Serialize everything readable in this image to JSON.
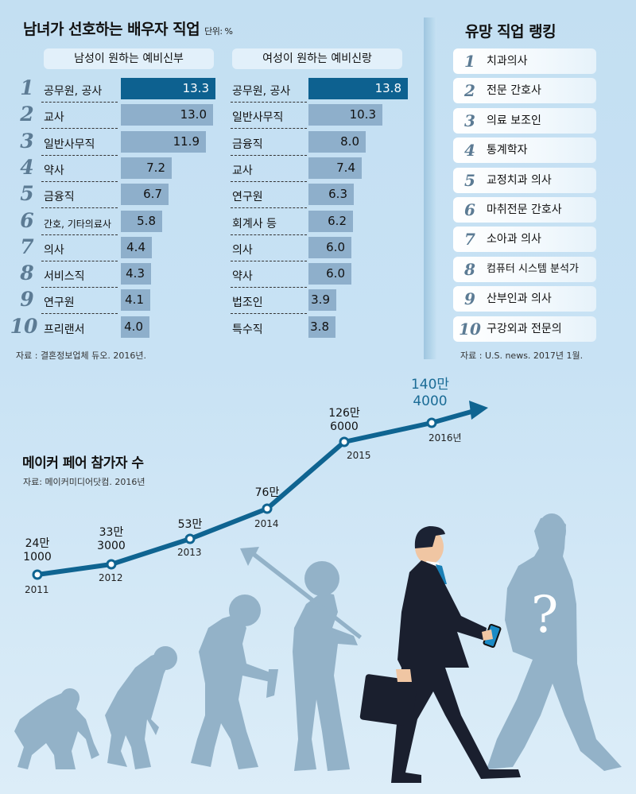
{
  "spouse_chart": {
    "title": "남녀가 선호하는 배우자 직업",
    "unit": "단위: %",
    "male_header": "남성이 원하는 예비신부",
    "female_header": "여성이 원하는 예비신랑",
    "source": "자료 : 결혼정보업체 듀오. 2016년.",
    "highlight_color": "#0d6190",
    "bar_color": "#8eafcb",
    "ranks": [
      "1",
      "2",
      "3",
      "4",
      "5",
      "6",
      "7",
      "8",
      "9",
      "10"
    ],
    "male": [
      {
        "label": "공무원, 공사",
        "value": "13.3"
      },
      {
        "label": "교사",
        "value": "13.0"
      },
      {
        "label": "일반사무직",
        "value": "11.9"
      },
      {
        "label": "약사",
        "value": "7.2"
      },
      {
        "label": "금융직",
        "value": "6.7"
      },
      {
        "label": "간호, 기타의료사",
        "value": "5.8"
      },
      {
        "label": "의사",
        "value": "4.4"
      },
      {
        "label": "서비스직",
        "value": "4.3"
      },
      {
        "label": "연구원",
        "value": "4.1"
      },
      {
        "label": "프리랜서",
        "value": "4.0"
      }
    ],
    "female": [
      {
        "label": "공무원, 공사",
        "value": "13.8"
      },
      {
        "label": "일반사무직",
        "value": "10.3"
      },
      {
        "label": "금융직",
        "value": "8.0"
      },
      {
        "label": "교사",
        "value": "7.4"
      },
      {
        "label": "연구원",
        "value": "6.3"
      },
      {
        "label": "회계사 등",
        "value": "6.2"
      },
      {
        "label": "의사",
        "value": "6.0"
      },
      {
        "label": "약사",
        "value": "6.0"
      },
      {
        "label": "법조인",
        "value": "3.9"
      },
      {
        "label": "특수직",
        "value": "3.8"
      }
    ]
  },
  "ranking": {
    "title": "유망 직업 랭킹",
    "source": "자료 : U.S. news. 2017년 1월.",
    "items": [
      {
        "rank": "1",
        "label": "치과의사"
      },
      {
        "rank": "2",
        "label": "전문 간호사"
      },
      {
        "rank": "3",
        "label": "의료 보조인"
      },
      {
        "rank": "4",
        "label": "통계학자"
      },
      {
        "rank": "5",
        "label": "교정치과 의사"
      },
      {
        "rank": "6",
        "label": "마취전문 간호사"
      },
      {
        "rank": "7",
        "label": "소아과 의사"
      },
      {
        "rank": "8",
        "label": "컴퓨터 시스템 분석가"
      },
      {
        "rank": "9",
        "label": "산부인과 의사"
      },
      {
        "rank": "10",
        "label": "구강외과 전문의"
      }
    ]
  },
  "maker_fair": {
    "title": "메이커 페어 참가자 수",
    "source": "자료: 메이커미디어닷컴. 2016년",
    "line_color": "#0f6491",
    "points": [
      {
        "year": "2011",
        "line1": "24만",
        "line2": "1000"
      },
      {
        "year": "2012",
        "line1": "33만",
        "line2": "3000"
      },
      {
        "year": "2013",
        "line1": "53만",
        "line2": ""
      },
      {
        "year": "2014",
        "line1": "76만",
        "line2": ""
      },
      {
        "year": "2015",
        "line1": "126만",
        "line2": "6000"
      },
      {
        "year": "2016년",
        "line1": "140만",
        "line2": "4000"
      }
    ]
  },
  "illustration": {
    "question_mark": "?"
  },
  "chart_data": [
    {
      "type": "bar",
      "title": "남녀가 선호하는 배우자 직업 - 남성이 원하는 예비신부",
      "ylabel": "단위: %",
      "categories": [
        "공무원, 공사",
        "교사",
        "일반사무직",
        "약사",
        "금융직",
        "간호, 기타의료사",
        "의사",
        "서비스직",
        "연구원",
        "프리랜서"
      ],
      "values": [
        13.3,
        13.0,
        11.9,
        7.2,
        6.7,
        5.8,
        4.4,
        4.3,
        4.1,
        4.0
      ],
      "orientation": "horizontal"
    },
    {
      "type": "bar",
      "title": "남녀가 선호하는 배우자 직업 - 여성이 원하는 예비신랑",
      "ylabel": "단위: %",
      "categories": [
        "공무원, 공사",
        "일반사무직",
        "금융직",
        "교사",
        "연구원",
        "회계사 등",
        "의사",
        "약사",
        "법조인",
        "특수직"
      ],
      "values": [
        13.8,
        10.3,
        8.0,
        7.4,
        6.3,
        6.2,
        6.0,
        6.0,
        3.9,
        3.8
      ],
      "orientation": "horizontal"
    },
    {
      "type": "table",
      "title": "유망 직업 랭킹",
      "categories": [
        "1",
        "2",
        "3",
        "4",
        "5",
        "6",
        "7",
        "8",
        "9",
        "10"
      ],
      "values": [
        "치과의사",
        "전문 간호사",
        "의료 보조인",
        "통계학자",
        "교정치과 의사",
        "마취전문 간호사",
        "소아과 의사",
        "컴퓨터 시스템 분석가",
        "산부인과 의사",
        "구강외과 전문의"
      ]
    },
    {
      "type": "line",
      "title": "메이커 페어 참가자 수",
      "x": [
        "2011",
        "2012",
        "2013",
        "2014",
        "2015",
        "2016"
      ],
      "values": [
        241000,
        333000,
        530000,
        760000,
        1266000,
        1404000
      ],
      "xlabel": "",
      "ylabel": "참가자 수"
    }
  ]
}
